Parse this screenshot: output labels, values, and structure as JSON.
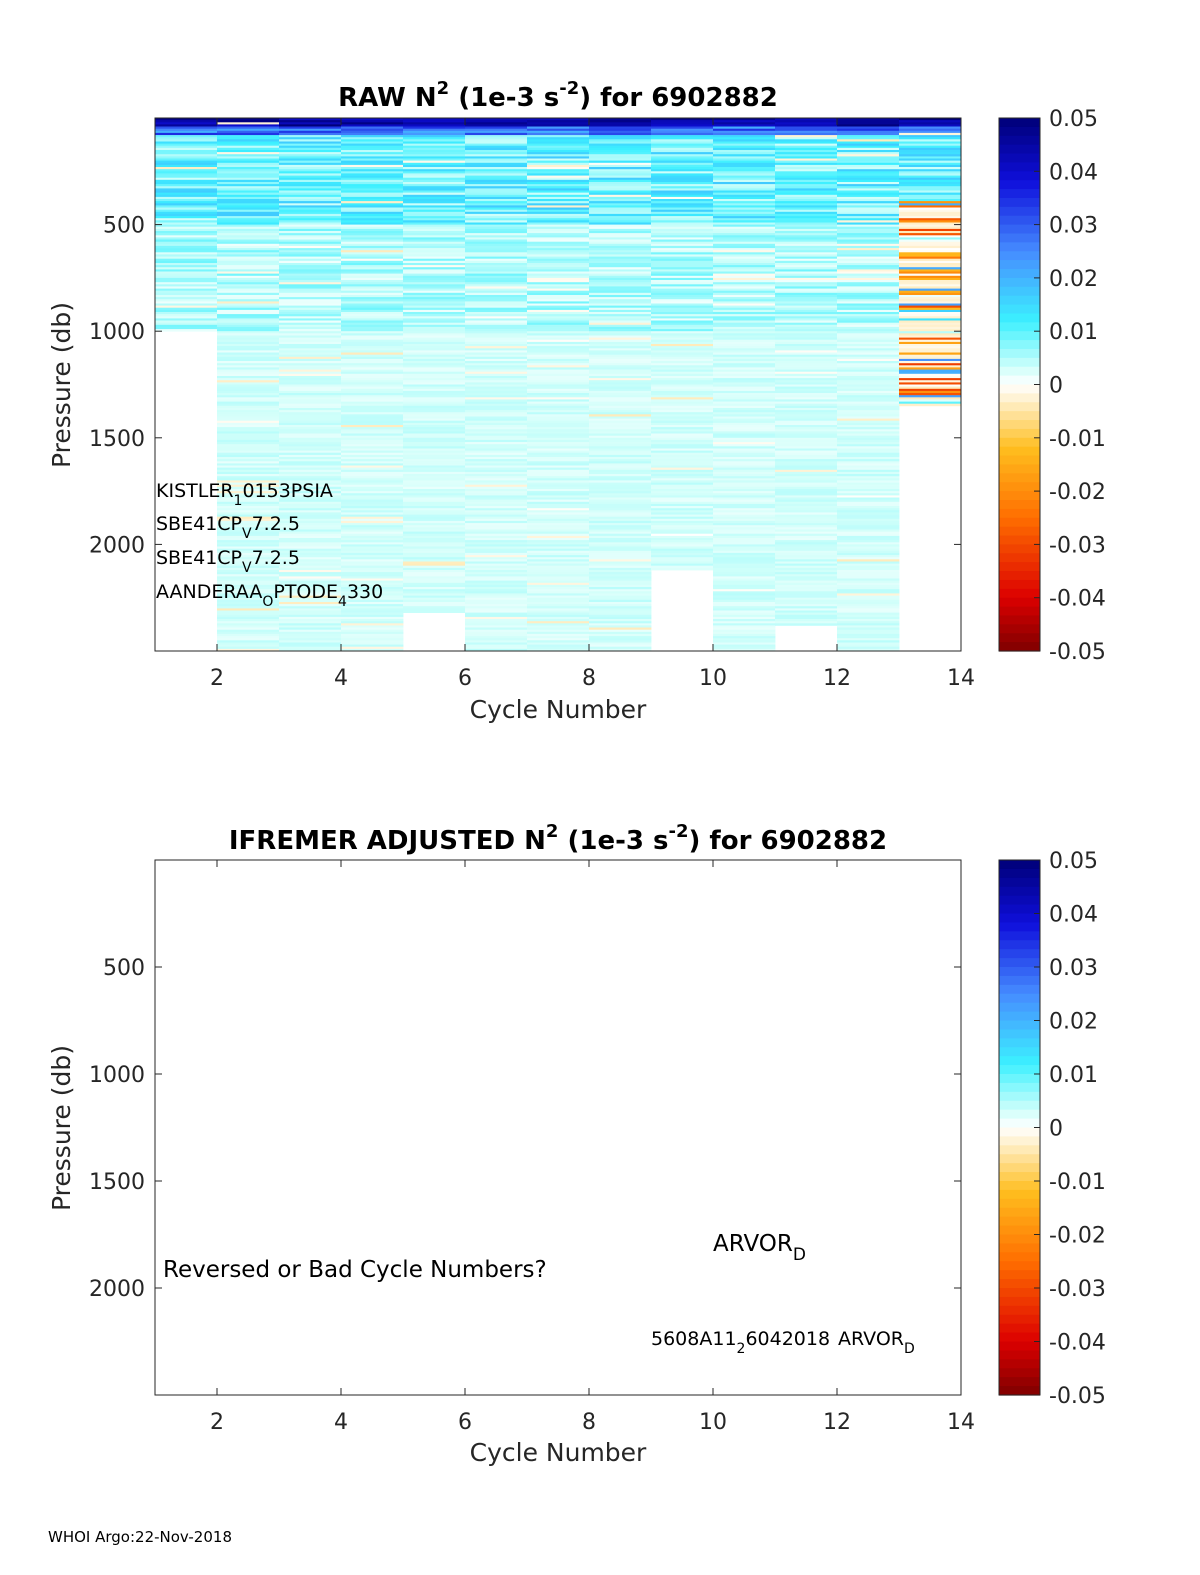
{
  "chart_data": [
    {
      "type": "heatmap",
      "title_parts": [
        "RAW N",
        "2",
        " (1e-3 s",
        "-2",
        ") for 6902882"
      ],
      "xlabel": "Cycle Number",
      "ylabel": "Pressure (db)",
      "xlim": [
        1,
        14
      ],
      "ylim": [
        2500,
        0
      ],
      "y_reversed": true,
      "xticks": [
        "2",
        "4",
        "6",
        "8",
        "10",
        "12",
        "14"
      ],
      "yticks": [
        "500",
        "1000",
        "1500",
        "2000"
      ],
      "colorbar": {
        "range": [
          -0.05,
          0.05
        ],
        "ticks": [
          "0.05",
          "0.04",
          "0.03",
          "0.02",
          "0.01",
          "0",
          "-0.01",
          "-0.02",
          "-0.03",
          "-0.04",
          "-0.05"
        ],
        "colormap": "jet-white-center"
      },
      "cycles": [
        {
          "cycle": 1,
          "max_pressure": 1000
        },
        {
          "cycle": 2,
          "max_pressure": 2500
        },
        {
          "cycle": 3,
          "max_pressure": 2500
        },
        {
          "cycle": 4,
          "max_pressure": 2500
        },
        {
          "cycle": 5,
          "max_pressure": 2320
        },
        {
          "cycle": 6,
          "max_pressure": 2500
        },
        {
          "cycle": 7,
          "max_pressure": 2500
        },
        {
          "cycle": 8,
          "max_pressure": 2500
        },
        {
          "cycle": 9,
          "max_pressure": 2120
        },
        {
          "cycle": 10,
          "max_pressure": 2500
        },
        {
          "cycle": 11,
          "max_pressure": 2380
        },
        {
          "cycle": 12,
          "max_pressure": 2500
        },
        {
          "cycle": 13,
          "max_pressure": 1350
        }
      ],
      "annotations": [
        {
          "text": "KISTLER",
          "sub": "1",
          "after": "0153PSIA"
        },
        {
          "text": "SBE41CP",
          "sub": "V",
          "after": "7.2.5"
        },
        {
          "text": "SBE41CP",
          "sub": "V",
          "after": "7.2.5"
        },
        {
          "text": "AANDERAA",
          "sub": "O",
          "after": "PTODE",
          "sub2": "4",
          "after2": "330"
        }
      ]
    },
    {
      "type": "heatmap",
      "title_parts": [
        "IFREMER  ADJUSTED N",
        "2",
        " (1e-3 s",
        "-2",
        ") for 6902882"
      ],
      "xlabel": "Cycle Number",
      "ylabel": "Pressure (db)",
      "xlim": [
        1,
        14
      ],
      "ylim": [
        2500,
        0
      ],
      "y_reversed": true,
      "xticks": [
        "2",
        "4",
        "6",
        "8",
        "10",
        "12",
        "14"
      ],
      "yticks": [
        "500",
        "1000",
        "1500",
        "2000"
      ],
      "colorbar": {
        "range": [
          -0.05,
          0.05
        ],
        "ticks": [
          "0.05",
          "0.04",
          "0.03",
          "0.02",
          "0.01",
          "0",
          "-0.01",
          "-0.02",
          "-0.03",
          "-0.04",
          "-0.05"
        ],
        "colormap": "jet-white-center"
      },
      "cycles": [],
      "annotations": {
        "warning": "Reversed or Bad Cycle Numbers?",
        "platform": {
          "text": "ARVOR",
          "sub": "D"
        },
        "serial": {
          "text": "5608A11",
          "sub": "2",
          "after": "6042018",
          "text2": "ARVOR",
          "sub2": "D"
        }
      }
    }
  ],
  "footer": "WHOI Argo:22-Nov-2018"
}
